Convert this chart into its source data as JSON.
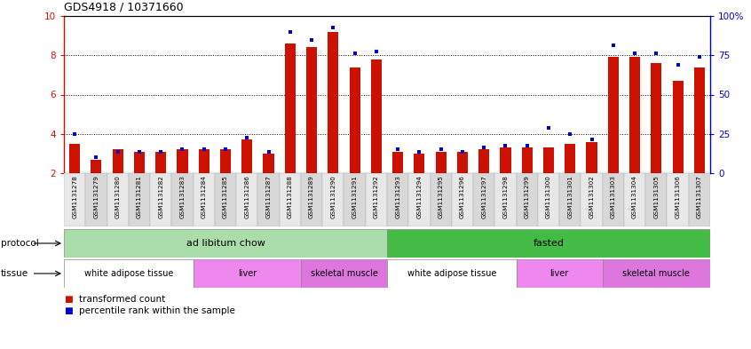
{
  "title": "GDS4918 / 10371660",
  "samples": [
    "GSM1131278",
    "GSM1131279",
    "GSM1131280",
    "GSM1131281",
    "GSM1131282",
    "GSM1131283",
    "GSM1131284",
    "GSM1131285",
    "GSM1131286",
    "GSM1131287",
    "GSM1131288",
    "GSM1131289",
    "GSM1131290",
    "GSM1131291",
    "GSM1131292",
    "GSM1131293",
    "GSM1131294",
    "GSM1131295",
    "GSM1131296",
    "GSM1131297",
    "GSM1131298",
    "GSM1131299",
    "GSM1131300",
    "GSM1131301",
    "GSM1131302",
    "GSM1131303",
    "GSM1131304",
    "GSM1131305",
    "GSM1131306",
    "GSM1131307"
  ],
  "red_values": [
    3.5,
    2.7,
    3.2,
    3.1,
    3.1,
    3.2,
    3.2,
    3.2,
    3.7,
    3.0,
    8.6,
    8.4,
    9.2,
    7.4,
    7.8,
    3.1,
    3.0,
    3.1,
    3.1,
    3.2,
    3.3,
    3.3,
    3.3,
    3.5,
    3.6,
    7.9,
    7.9,
    7.6,
    6.7,
    7.4
  ],
  "blue_values": [
    4.0,
    2.8,
    3.1,
    3.1,
    3.1,
    3.2,
    3.2,
    3.2,
    3.8,
    3.1,
    9.2,
    8.8,
    9.4,
    8.1,
    8.2,
    3.2,
    3.1,
    3.2,
    3.1,
    3.3,
    3.4,
    3.4,
    4.3,
    4.0,
    3.7,
    8.5,
    8.1,
    8.1,
    7.5,
    7.9
  ],
  "y_min": 2,
  "y_max": 10,
  "y_ticks_red": [
    2,
    4,
    6,
    8,
    10
  ],
  "y_ticks_blue": [
    0,
    25,
    50,
    75,
    100
  ],
  "y_ticks_blue_labels": [
    "0",
    "25",
    "50",
    "75",
    "100%"
  ],
  "dotted_lines_red": [
    4,
    6,
    8
  ],
  "bar_color_red": "#cc1100",
  "bar_color_blue": "#0000cc",
  "protocol_groups": [
    {
      "label": "ad libitum chow",
      "start": 0,
      "end": 15,
      "color": "#aaddaa"
    },
    {
      "label": "fasted",
      "start": 15,
      "end": 30,
      "color": "#44bb44"
    }
  ],
  "tissue_groups": [
    {
      "label": "white adipose tissue",
      "start": 0,
      "end": 6,
      "color": "#ffffff"
    },
    {
      "label": "liver",
      "start": 6,
      "end": 11,
      "color": "#ee88ee"
    },
    {
      "label": "skeletal muscle",
      "start": 11,
      "end": 15,
      "color": "#dd77dd"
    },
    {
      "label": "white adipose tissue",
      "start": 15,
      "end": 21,
      "color": "#ffffff"
    },
    {
      "label": "liver",
      "start": 21,
      "end": 25,
      "color": "#ee88ee"
    },
    {
      "label": "skeletal muscle",
      "start": 25,
      "end": 30,
      "color": "#dd77dd"
    }
  ],
  "legend_red_label": "transformed count",
  "legend_blue_label": "percentile rank within the sample",
  "bg_color": "#ffffff",
  "bar_width": 0.5,
  "axis_color_red": "#cc1100",
  "axis_color_blue": "#0000cc",
  "tick_box_colors": [
    "#e8e8e8",
    "#d8d8d8"
  ]
}
